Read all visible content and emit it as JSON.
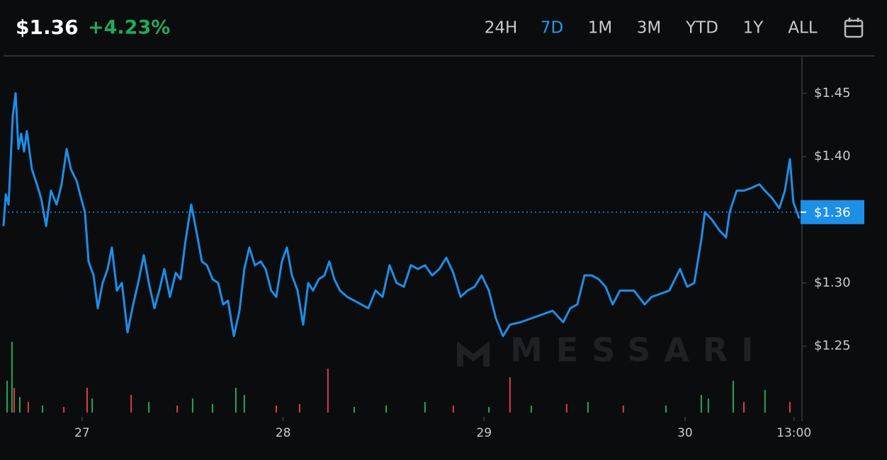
{
  "header": {
    "price": "$1.36",
    "change": "+4.23%",
    "ranges": [
      "24H",
      "7D",
      "1M",
      "3M",
      "YTD",
      "1Y",
      "ALL"
    ],
    "selected_index": 1
  },
  "watermark": "MESSARI",
  "chart_data": {
    "type": "line",
    "color": "#1c8fe8",
    "x": [
      26.609,
      26.62,
      26.634,
      26.655,
      26.669,
      26.683,
      26.697,
      26.711,
      26.725,
      26.75,
      26.775,
      26.796,
      26.821,
      26.845,
      26.873,
      26.898,
      26.923,
      26.944,
      26.972,
      27.0,
      27.014,
      27.032,
      27.057,
      27.078,
      27.102,
      27.127,
      27.148,
      27.173,
      27.198,
      27.226,
      27.254,
      27.279,
      27.307,
      27.332,
      27.36,
      27.384,
      27.409,
      27.437,
      27.466,
      27.49,
      27.515,
      27.543,
      27.571,
      27.596,
      27.621,
      27.649,
      27.677,
      27.702,
      27.726,
      27.755,
      27.783,
      27.807,
      27.832,
      27.86,
      27.889,
      27.913,
      27.941,
      27.966,
      27.994,
      28.019,
      28.044,
      28.072,
      28.1,
      28.125,
      28.149,
      28.178,
      28.206,
      28.23,
      28.255,
      28.283,
      28.319,
      28.354,
      28.389,
      28.424,
      28.46,
      28.495,
      28.53,
      28.565,
      28.601,
      28.636,
      28.671,
      28.706,
      28.742,
      28.777,
      28.812,
      28.847,
      28.883,
      28.918,
      28.953,
      28.988,
      29.024,
      29.059,
      29.094,
      29.129,
      29.182,
      29.235,
      29.288,
      29.341,
      29.394,
      29.429,
      29.464,
      29.5,
      29.535,
      29.57,
      29.605,
      29.64,
      29.676,
      29.711,
      29.746,
      29.799,
      29.834,
      29.87,
      29.922,
      29.975,
      30.011,
      30.046,
      30.081,
      30.099,
      30.134,
      30.169,
      30.204,
      30.222,
      30.257,
      30.293,
      30.328,
      30.37,
      30.398,
      30.434,
      30.469,
      30.497,
      30.522,
      30.539,
      30.557,
      30.568
    ],
    "values": [
      1.345,
      1.37,
      1.362,
      1.432,
      1.45,
      1.406,
      1.418,
      1.404,
      1.42,
      1.39,
      1.378,
      1.367,
      1.345,
      1.373,
      1.362,
      1.378,
      1.406,
      1.39,
      1.381,
      1.364,
      1.356,
      1.317,
      1.306,
      1.28,
      1.3,
      1.311,
      1.328,
      1.294,
      1.3,
      1.261,
      1.283,
      1.3,
      1.322,
      1.3,
      1.28,
      1.294,
      1.311,
      1.289,
      1.308,
      1.303,
      1.334,
      1.362,
      1.339,
      1.317,
      1.314,
      1.303,
      1.3,
      1.283,
      1.286,
      1.258,
      1.278,
      1.311,
      1.328,
      1.314,
      1.317,
      1.311,
      1.294,
      1.289,
      1.317,
      1.328,
      1.306,
      1.294,
      1.267,
      1.3,
      1.294,
      1.303,
      1.306,
      1.317,
      1.303,
      1.294,
      1.289,
      1.286,
      1.283,
      1.28,
      1.294,
      1.289,
      1.314,
      1.3,
      1.297,
      1.314,
      1.311,
      1.314,
      1.306,
      1.311,
      1.32,
      1.308,
      1.289,
      1.294,
      1.297,
      1.306,
      1.294,
      1.272,
      1.258,
      1.267,
      1.269,
      1.272,
      1.275,
      1.278,
      1.269,
      1.28,
      1.283,
      1.306,
      1.306,
      1.303,
      1.297,
      1.283,
      1.294,
      1.294,
      1.294,
      1.283,
      1.289,
      1.291,
      1.294,
      1.311,
      1.297,
      1.3,
      1.334,
      1.356,
      1.35,
      1.342,
      1.336,
      1.356,
      1.373,
      1.373,
      1.375,
      1.378,
      1.373,
      1.367,
      1.359,
      1.373,
      1.398,
      1.364,
      1.356,
      1.351
    ],
    "volume": {
      "x": [
        26.627,
        26.651,
        26.662,
        26.69,
        26.732,
        26.803,
        26.909,
        27.025,
        27.05,
        27.244,
        27.332,
        27.473,
        27.55,
        27.649,
        27.765,
        27.807,
        27.966,
        28.082,
        28.223,
        28.354,
        28.513,
        28.706,
        28.847,
        29.024,
        29.129,
        29.235,
        29.411,
        29.517,
        29.693,
        29.905,
        30.081,
        30.116,
        30.24,
        30.293,
        30.398,
        30.522
      ],
      "values": [
        45,
        100,
        35,
        22,
        15,
        10,
        8,
        35,
        20,
        25,
        15,
        10,
        20,
        12,
        35,
        25,
        10,
        12,
        62,
        8,
        10,
        15,
        10,
        8,
        50,
        10,
        12,
        15,
        10,
        10,
        25,
        20,
        45,
        15,
        32,
        15
      ],
      "colors": [
        "#22a85a",
        "#22a85a",
        "#e0394a",
        "#22a85a",
        "#e0394a",
        "#22a85a",
        "#e0394a",
        "#e0394a",
        "#22a85a",
        "#e0394a",
        "#22a85a",
        "#e0394a",
        "#22a85a",
        "#22a85a",
        "#22a85a",
        "#22a85a",
        "#e0394a",
        "#e0394a",
        "#e0394a",
        "#22a85a",
        "#22a85a",
        "#22a85a",
        "#e0394a",
        "#22a85a",
        "#e0394a",
        "#22a85a",
        "#e0394a",
        "#22a85a",
        "#e0394a",
        "#22a85a",
        "#22a85a",
        "#22a85a",
        "#22a85a",
        "#e0394a",
        "#22a85a",
        "#e0394a"
      ]
    },
    "price_marker": {
      "value": 1.356,
      "label": "$1.36"
    },
    "xlim": [
      26.609,
      30.582
    ],
    "ylim": [
      1.1975,
      1.479
    ],
    "xticks": [
      27,
      28,
      29,
      30,
      {
        "value": 30.542,
        "label": "13:00"
      }
    ],
    "yticks": [
      {
        "value": 1.25,
        "label": "$1.25"
      },
      {
        "value": 1.3,
        "label": "$1.30"
      },
      {
        "value": 1.4,
        "label": "$1.40"
      },
      {
        "value": 1.45,
        "label": "$1.45"
      }
    ]
  }
}
